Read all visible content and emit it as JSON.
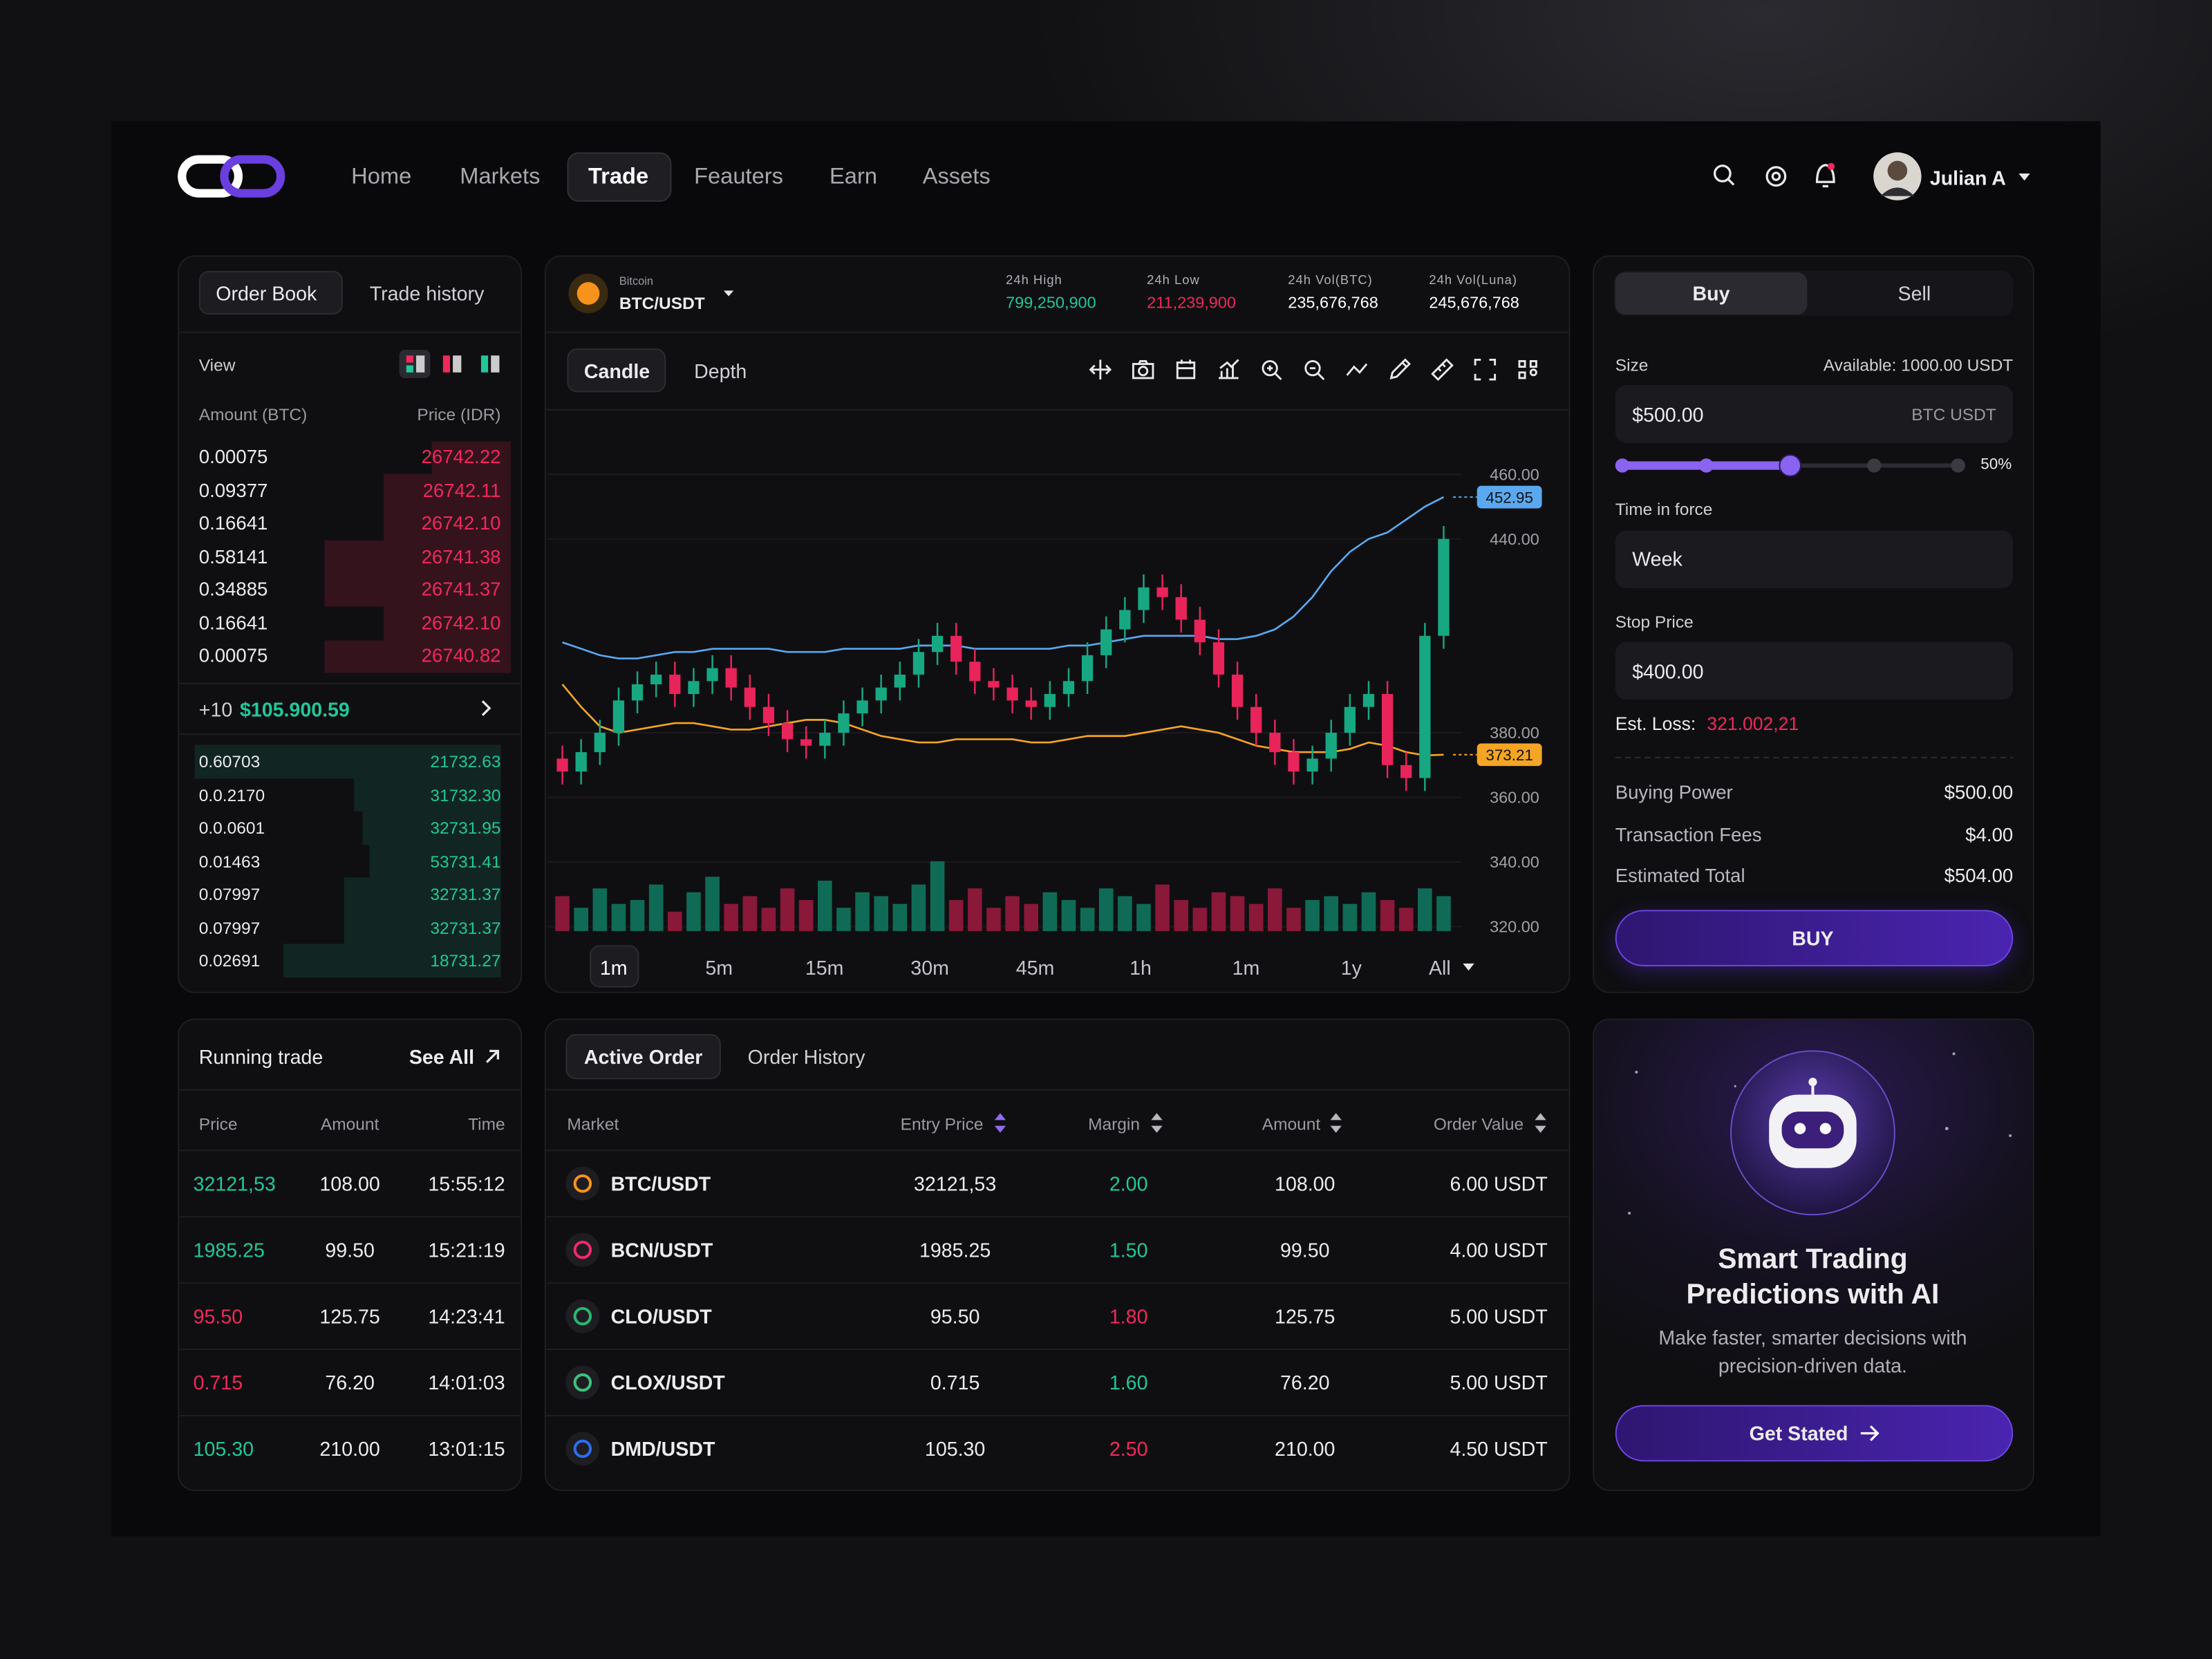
{
  "nav": {
    "items": [
      "Home",
      "Markets",
      "Trade",
      "Feauters",
      "Earn",
      "Assets"
    ],
    "user": "Julian A"
  },
  "order_book": {
    "tabs": [
      "Order Book",
      "Trade history"
    ],
    "view": "View",
    "columns": [
      "Amount (BTC)",
      "Price (IDR)"
    ],
    "asks": [
      {
        "amount": "0.00075",
        "price": "26742.22",
        "depth": 25
      },
      {
        "amount": "0.09377",
        "price": "26742.11",
        "depth": 40
      },
      {
        "amount": "0.16641",
        "price": "26742.10",
        "depth": 40
      },
      {
        "amount": "0.58141",
        "price": "26741.38",
        "depth": 59
      },
      {
        "amount": "0.34885",
        "price": "26741.37",
        "depth": 59
      },
      {
        "amount": "0.16641",
        "price": "26742.10",
        "depth": 40
      },
      {
        "amount": "0.00075",
        "price": "26740.82",
        "depth": 59
      }
    ],
    "mid": {
      "change": "+10",
      "price": "$105.900.59"
    },
    "bids": [
      {
        "amount": "0.60703",
        "price": "21732.63",
        "depth": 100
      },
      {
        "amount": "0.0.2170",
        "price": "31732.30",
        "depth": 48
      },
      {
        "amount": "0.0.0601",
        "price": "32731.95",
        "depth": 45
      },
      {
        "amount": "0.01463",
        "price": "53731.41",
        "depth": 43
      },
      {
        "amount": "0.07997",
        "price": "32731.37",
        "depth": 51
      },
      {
        "amount": "0.07997",
        "price": "32731.37",
        "depth": 51
      },
      {
        "amount": "0.02691",
        "price": "18731.27",
        "depth": 71
      }
    ]
  },
  "ticker": {
    "name": "Bitcoin",
    "pair": "BTC/USDT",
    "stats": [
      {
        "label": "24h High",
        "value": "799,250,900",
        "color": "#22c79a"
      },
      {
        "label": "24h Low",
        "value": "211,239,900",
        "color": "#f0295b"
      },
      {
        "label": "24h Vol(BTC)",
        "value": "235,676,768",
        "color": "#ffffff"
      },
      {
        "label": "24h Vol(Luna)",
        "value": "245,676,768",
        "color": "#ffffff"
      }
    ]
  },
  "chart_tabs": [
    "Candle",
    "Depth"
  ],
  "timeframes": [
    "1m",
    "5m",
    "15m",
    "30m",
    "45m",
    "1h",
    "1m",
    "1y",
    "All"
  ],
  "chart_data": {
    "type": "candlestick",
    "up_color": "#17a882",
    "down_color": "#e8245a",
    "ylim": [
      316,
      478
    ],
    "yticks": [
      {
        "value": 460,
        "label": "460.00"
      },
      {
        "value": 440,
        "label": "440.00"
      },
      {
        "value": 380,
        "label": "380.00"
      },
      {
        "value": 360,
        "label": "360.00"
      },
      {
        "value": 340,
        "label": "340.00"
      },
      {
        "value": 320,
        "label": "320.00"
      }
    ],
    "grid": true,
    "open": [
      372,
      368,
      374,
      380,
      390,
      395,
      398,
      392,
      396,
      400,
      394,
      388,
      383,
      378,
      376,
      380,
      386,
      390,
      394,
      398,
      405,
      410,
      402,
      396,
      394,
      390,
      388,
      392,
      396,
      404,
      412,
      418,
      425,
      422,
      415,
      408,
      398,
      388,
      380,
      374,
      368,
      372,
      380,
      388,
      392,
      370,
      366,
      410
    ],
    "high": [
      376,
      378,
      384,
      394,
      399,
      402,
      402,
      400,
      404,
      404,
      398,
      392,
      387,
      382,
      384,
      390,
      394,
      398,
      402,
      409,
      414,
      414,
      406,
      400,
      398,
      394,
      396,
      400,
      408,
      416,
      422,
      429,
      429,
      426,
      419,
      412,
      402,
      392,
      384,
      378,
      376,
      384,
      392,
      396,
      396,
      374,
      414,
      444
    ],
    "low": [
      364,
      364,
      370,
      376,
      386,
      391,
      388,
      388,
      392,
      390,
      384,
      379,
      374,
      372,
      372,
      376,
      382,
      386,
      390,
      394,
      401,
      398,
      392,
      390,
      386,
      384,
      384,
      388,
      392,
      400,
      408,
      414,
      418,
      411,
      404,
      394,
      384,
      376,
      370,
      364,
      364,
      368,
      376,
      384,
      366,
      362,
      362,
      406
    ],
    "close": [
      368,
      374,
      380,
      390,
      395,
      398,
      392,
      396,
      400,
      394,
      388,
      383,
      378,
      376,
      380,
      386,
      390,
      394,
      398,
      405,
      410,
      402,
      396,
      394,
      390,
      388,
      392,
      396,
      404,
      412,
      418,
      425,
      422,
      415,
      408,
      398,
      388,
      380,
      374,
      368,
      372,
      380,
      388,
      392,
      370,
      366,
      410,
      440
    ],
    "volume": {
      "ylim": [
        0,
        100
      ],
      "values": [
        45,
        30,
        55,
        35,
        40,
        60,
        25,
        50,
        70,
        35,
        45,
        30,
        55,
        40,
        65,
        30,
        50,
        45,
        35,
        60,
        90,
        40,
        55,
        30,
        45,
        35,
        50,
        40,
        30,
        55,
        45,
        35,
        60,
        40,
        30,
        50,
        45,
        35,
        55,
        30,
        40,
        45,
        35,
        50,
        40,
        30,
        55,
        45
      ]
    },
    "series": [
      {
        "color": "#5aa9f0",
        "values": [
          408,
          406,
          404,
          403,
          403,
          404,
          405,
          405,
          406,
          406,
          406,
          406,
          405,
          405,
          405,
          406,
          406,
          406,
          406,
          407,
          407,
          407,
          406,
          406,
          406,
          406,
          406,
          407,
          407,
          408,
          409,
          410,
          410,
          410,
          410,
          409,
          409,
          410,
          412,
          416,
          422,
          430,
          436,
          440,
          442,
          446,
          450,
          452.95
        ]
      },
      {
        "color": "#f5a524",
        "values": [
          395,
          388,
          382,
          380,
          381,
          382,
          383,
          383,
          382,
          381,
          381,
          382,
          383,
          384,
          384,
          383,
          381,
          379,
          378,
          377,
          377,
          378,
          378,
          378,
          378,
          377,
          377,
          378,
          379,
          379,
          379,
          380,
          381,
          382,
          381,
          380,
          378,
          376,
          375,
          374,
          374,
          374,
          375,
          377,
          376,
          374,
          373,
          373.21
        ]
      }
    ],
    "price_tags": [
      {
        "value": 452.95,
        "label": "452.95",
        "color": "#5aa9f0"
      },
      {
        "value": 373.21,
        "label": "373.21",
        "color": "#f5a524"
      }
    ]
  },
  "order_form": {
    "tabs": [
      "Buy",
      "Sell"
    ],
    "size_label": "Size",
    "available": "Available: 1000.00 USDT",
    "size_value": "$500.00",
    "size_unit": "BTC USDT",
    "slider": {
      "value": 50,
      "label": "50%"
    },
    "tif_label": "Time in force",
    "tif_value": "Week",
    "stop_label": "Stop Price",
    "stop_value": "$400.00",
    "loss_label": "Est. Loss:",
    "loss_value": "321.002,21",
    "summary": [
      {
        "label": "Buying Power",
        "value": "$500.00"
      },
      {
        "label": "Transaction Fees",
        "value": "$4.00"
      },
      {
        "label": "Estimated Total",
        "value": "$504.00"
      }
    ],
    "button": "BUY"
  },
  "running_trade": {
    "title": "Running trade",
    "see_all": "See All",
    "columns": [
      "Price",
      "Amount",
      "Time"
    ],
    "rows": [
      {
        "price": "32121,53",
        "amount": "108.00",
        "time": "15:55:12",
        "color": "#22c79a"
      },
      {
        "price": "1985.25",
        "amount": "99.50",
        "time": "15:21:19",
        "color": "#22c79a"
      },
      {
        "price": "95.50",
        "amount": "125.75",
        "time": "14:23:41",
        "color": "#f0295b"
      },
      {
        "price": "0.715",
        "amount": "76.20",
        "time": "14:01:03",
        "color": "#f0295b"
      },
      {
        "price": "105.30",
        "amount": "210.00",
        "time": "13:01:15",
        "color": "#22c79a"
      }
    ]
  },
  "orders": {
    "tabs": [
      "Active Order",
      "Order History"
    ],
    "columns": [
      "Market",
      "Entry Price",
      "Margin",
      "Amount",
      "Order Value"
    ],
    "rows": [
      {
        "market": "BTC/USDT",
        "entry": "32121,53",
        "margin": "2.00",
        "margin_color": "#22c79a",
        "amount": "108.00",
        "value": "6.00 USDT",
        "icon_color": "#f7931a"
      },
      {
        "market": "BCN/USDT",
        "entry": "1985.25",
        "margin": "1.50",
        "margin_color": "#22c79a",
        "amount": "99.50",
        "value": "4.00 USDT",
        "icon_color": "#f0296b"
      },
      {
        "market": "CLO/USDT",
        "entry": "95.50",
        "margin": "1.80",
        "margin_color": "#f0295b",
        "amount": "125.75",
        "value": "5.00 USDT",
        "icon_color": "#2bb673"
      },
      {
        "market": "CLOX/USDT",
        "entry": "0.715",
        "margin": "1.60",
        "margin_color": "#22c79a",
        "amount": "76.20",
        "value": "5.00 USDT",
        "icon_color": "#3fbf7f"
      },
      {
        "market": "DMD/USDT",
        "entry": "105.30",
        "margin": "2.50",
        "margin_color": "#f0295b",
        "amount": "210.00",
        "value": "4.50 USDT",
        "icon_color": "#2d6cf0"
      }
    ]
  },
  "promo": {
    "title": "Smart Trading Predictions with AI",
    "text": "Make faster, smarter decisions with precision-driven data.",
    "button": "Get Stated"
  }
}
